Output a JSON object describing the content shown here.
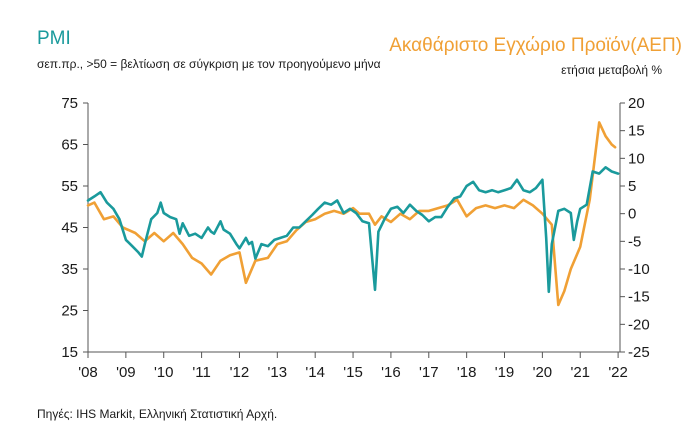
{
  "header": {
    "pmi_title": "PMI",
    "pmi_subtitle": "σεπ.πρ., >50 = βελτίωση σε σύγκριση με τον προηγούμενο μήνα",
    "gdp_title": "Ακαθάριστο Εγχώριο Προϊόν(ΑΕΠ)",
    "gdp_subtitle": "ετήσια μεταβολή %"
  },
  "footer": {
    "source": "Πηγές: IHS Markit, Ελληνική Στατιστική Αρχή."
  },
  "colors": {
    "pmi": "#1a9a9c",
    "gdp": "#f0a035",
    "axis": "#555555"
  },
  "chart_data": {
    "type": "line",
    "x_ticks": [
      "'08",
      "'09",
      "'10",
      "'11",
      "'12",
      "'13",
      "'14",
      "'15",
      "'16",
      "'17",
      "'18",
      "'19",
      "'20",
      "'21",
      "'22"
    ],
    "x_range": [
      2008.0,
      2022.05
    ],
    "y_left": {
      "ticks": [
        75,
        65,
        55,
        45,
        35,
        25,
        15
      ],
      "range": [
        15,
        75
      ]
    },
    "y_right": {
      "ticks": [
        20,
        15,
        10,
        5,
        0,
        -5,
        -10,
        -15,
        -20,
        -25
      ],
      "range": [
        -25,
        20
      ]
    },
    "series": [
      {
        "axis": "left",
        "points": [
          [
            2008.0,
            51.5
          ],
          [
            2008.17,
            52.5
          ],
          [
            2008.33,
            53.5
          ],
          [
            2008.5,
            51.0
          ],
          [
            2008.67,
            49.5
          ],
          [
            2008.83,
            47.0
          ],
          [
            2009.0,
            42.0
          ],
          [
            2009.17,
            40.5
          ],
          [
            2009.33,
            39.0
          ],
          [
            2009.42,
            38.0
          ],
          [
            2009.5,
            41.0
          ],
          [
            2009.67,
            47.0
          ],
          [
            2009.83,
            48.5
          ],
          [
            2009.92,
            51.0
          ],
          [
            2010.0,
            48.5
          ],
          [
            2010.17,
            47.5
          ],
          [
            2010.33,
            47.0
          ],
          [
            2010.42,
            43.5
          ],
          [
            2010.5,
            46.0
          ],
          [
            2010.67,
            43.0
          ],
          [
            2010.83,
            43.5
          ],
          [
            2011.0,
            42.5
          ],
          [
            2011.17,
            45.0
          ],
          [
            2011.25,
            44.0
          ],
          [
            2011.33,
            43.5
          ],
          [
            2011.5,
            46.5
          ],
          [
            2011.58,
            44.5
          ],
          [
            2011.75,
            43.5
          ],
          [
            2011.92,
            41.0
          ],
          [
            2012.0,
            40.0
          ],
          [
            2012.17,
            42.5
          ],
          [
            2012.25,
            41.0
          ],
          [
            2012.33,
            41.5
          ],
          [
            2012.42,
            37.5
          ],
          [
            2012.58,
            41.0
          ],
          [
            2012.75,
            40.5
          ],
          [
            2012.92,
            42.0
          ],
          [
            2013.08,
            42.5
          ],
          [
            2013.25,
            43.0
          ],
          [
            2013.42,
            45.0
          ],
          [
            2013.58,
            45.0
          ],
          [
            2013.75,
            46.5
          ],
          [
            2013.92,
            48.0
          ],
          [
            2014.08,
            49.5
          ],
          [
            2014.25,
            51.0
          ],
          [
            2014.42,
            50.5
          ],
          [
            2014.58,
            51.5
          ],
          [
            2014.75,
            48.5
          ],
          [
            2014.92,
            49.5
          ],
          [
            2015.08,
            48.5
          ],
          [
            2015.25,
            46.5
          ],
          [
            2015.42,
            46.0
          ],
          [
            2015.58,
            30.0
          ],
          [
            2015.67,
            44.0
          ],
          [
            2015.83,
            47.0
          ],
          [
            2016.0,
            49.5
          ],
          [
            2016.17,
            50.0
          ],
          [
            2016.33,
            48.5
          ],
          [
            2016.5,
            50.5
          ],
          [
            2016.67,
            49.0
          ],
          [
            2016.83,
            48.0
          ],
          [
            2017.0,
            46.5
          ],
          [
            2017.17,
            47.5
          ],
          [
            2017.33,
            47.5
          ],
          [
            2017.5,
            50.0
          ],
          [
            2017.67,
            52.0
          ],
          [
            2017.83,
            52.5
          ],
          [
            2018.0,
            55.0
          ],
          [
            2018.17,
            56.0
          ],
          [
            2018.33,
            54.0
          ],
          [
            2018.5,
            53.5
          ],
          [
            2018.67,
            54.0
          ],
          [
            2018.83,
            53.5
          ],
          [
            2019.0,
            54.0
          ],
          [
            2019.17,
            54.5
          ],
          [
            2019.33,
            56.5
          ],
          [
            2019.5,
            54.0
          ],
          [
            2019.67,
            53.5
          ],
          [
            2019.83,
            54.5
          ],
          [
            2020.0,
            56.5
          ],
          [
            2020.1,
            42.5
          ],
          [
            2020.17,
            29.5
          ],
          [
            2020.25,
            41.0
          ],
          [
            2020.42,
            49.0
          ],
          [
            2020.58,
            49.5
          ],
          [
            2020.75,
            48.5
          ],
          [
            2020.83,
            42.0
          ],
          [
            2020.92,
            46.5
          ],
          [
            2021.0,
            49.5
          ],
          [
            2021.17,
            50.5
          ],
          [
            2021.33,
            58.5
          ],
          [
            2021.5,
            58.0
          ],
          [
            2021.67,
            59.5
          ],
          [
            2021.83,
            58.5
          ],
          [
            2022.0,
            58.0
          ]
        ]
      },
      {
        "axis": "right",
        "points": [
          [
            2008.0,
            1.5
          ],
          [
            2008.17,
            2.0
          ],
          [
            2008.42,
            -1.0
          ],
          [
            2008.67,
            -0.5
          ],
          [
            2008.92,
            -2.5
          ],
          [
            2009.25,
            -3.5
          ],
          [
            2009.5,
            -5.0
          ],
          [
            2009.75,
            -3.5
          ],
          [
            2010.0,
            -5.0
          ],
          [
            2010.25,
            -3.5
          ],
          [
            2010.5,
            -5.5
          ],
          [
            2010.75,
            -8.0
          ],
          [
            2011.0,
            -9.0
          ],
          [
            2011.25,
            -11.0
          ],
          [
            2011.5,
            -8.5
          ],
          [
            2011.75,
            -7.5
          ],
          [
            2012.0,
            -7.0
          ],
          [
            2012.17,
            -12.5
          ],
          [
            2012.42,
            -8.5
          ],
          [
            2012.75,
            -8.0
          ],
          [
            2013.0,
            -5.5
          ],
          [
            2013.25,
            -5.0
          ],
          [
            2013.5,
            -3.0
          ],
          [
            2013.75,
            -1.5
          ],
          [
            2014.0,
            -1.0
          ],
          [
            2014.25,
            0.0
          ],
          [
            2014.5,
            0.5
          ],
          [
            2014.75,
            0.0
          ],
          [
            2015.0,
            1.0
          ],
          [
            2015.17,
            0.0
          ],
          [
            2015.42,
            0.0
          ],
          [
            2015.58,
            -2.0
          ],
          [
            2015.75,
            -0.5
          ],
          [
            2016.0,
            -1.5
          ],
          [
            2016.25,
            0.0
          ],
          [
            2016.5,
            -1.0
          ],
          [
            2016.75,
            0.5
          ],
          [
            2017.0,
            0.5
          ],
          [
            2017.25,
            1.0
          ],
          [
            2017.5,
            1.5
          ],
          [
            2017.75,
            2.5
          ],
          [
            2018.0,
            -0.5
          ],
          [
            2018.25,
            1.0
          ],
          [
            2018.5,
            1.5
          ],
          [
            2018.75,
            1.0
          ],
          [
            2019.0,
            1.5
          ],
          [
            2019.25,
            1.0
          ],
          [
            2019.5,
            2.5
          ],
          [
            2019.75,
            1.5
          ],
          [
            2020.0,
            0.0
          ],
          [
            2020.25,
            -2.0
          ],
          [
            2020.42,
            -16.5
          ],
          [
            2020.58,
            -14.0
          ],
          [
            2020.75,
            -10.0
          ],
          [
            2021.0,
            -6.0
          ],
          [
            2021.25,
            2.5
          ],
          [
            2021.5,
            16.5
          ],
          [
            2021.67,
            14.0
          ],
          [
            2021.83,
            12.5
          ],
          [
            2021.92,
            12.0
          ]
        ]
      }
    ]
  }
}
